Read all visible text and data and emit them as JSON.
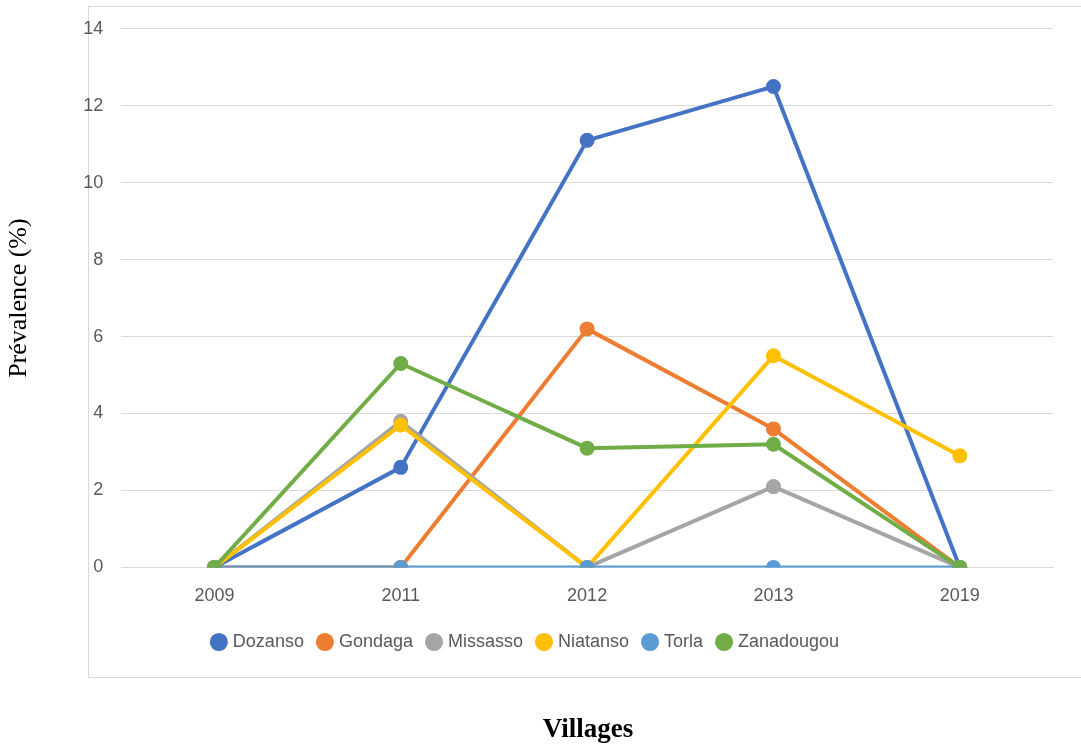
{
  "chart_data": {
    "type": "line",
    "xlabel": "Villages",
    "ylabel": "Prévalence (%)",
    "categories": [
      "2009",
      "2011",
      "2012",
      "2013",
      "2019"
    ],
    "series": [
      {
        "name": "Dozanso",
        "color": "#4472c4",
        "values": [
          0,
          2.6,
          11.1,
          12.5,
          0
        ]
      },
      {
        "name": "Gondaga",
        "color": "#ed7d31",
        "values": [
          0,
          0,
          6.2,
          3.6,
          0
        ]
      },
      {
        "name": "Missasso",
        "color": "#a5a5a5",
        "values": [
          0,
          3.8,
          0,
          2.1,
          0
        ]
      },
      {
        "name": "Niatanso",
        "color": "#ffc000",
        "values": [
          0,
          3.7,
          0,
          5.5,
          2.9
        ]
      },
      {
        "name": "Torla",
        "color": "#5b9bd5",
        "values": [
          0,
          0,
          0,
          0,
          0
        ]
      },
      {
        "name": "Zanadougou",
        "color": "#70ad47",
        "values": [
          0,
          5.3,
          3.1,
          3.2,
          0
        ]
      }
    ],
    "ylim": [
      0,
      14
    ],
    "yticks": [
      0,
      2,
      4,
      6,
      8,
      10,
      12,
      14
    ],
    "grid": "y",
    "legend": "bottom",
    "marker": "circle",
    "line_style": "solid"
  }
}
